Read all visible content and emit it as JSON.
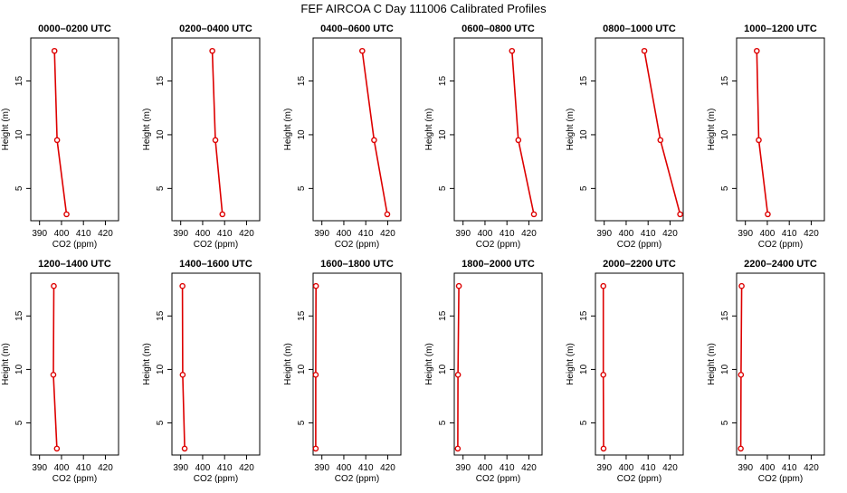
{
  "title": "FEF AIRCOA C  Day 111006  Calibrated Profiles",
  "chart_data": {
    "type": "line",
    "title": "FEF AIRCOA C  Day 111006  Calibrated Profiles",
    "xlabel": "CO2 (ppm)",
    "ylabel": "Height (m)",
    "xlim": [
      386,
      426
    ],
    "ylim": [
      2,
      19
    ],
    "xticks": [
      "390",
      "400",
      "410",
      "420"
    ],
    "yticks": [
      "5",
      "10",
      "15"
    ],
    "line_color": "#dd0000",
    "panels": [
      {
        "title": "0000–0200 UTC",
        "co2": [
          402.3,
          398.0,
          396.8
        ],
        "height": [
          2.6,
          9.5,
          17.8
        ]
      },
      {
        "title": "0200–0400 UTC",
        "co2": [
          409.0,
          405.8,
          404.4
        ],
        "height": [
          2.6,
          9.5,
          17.8
        ]
      },
      {
        "title": "0400–0600 UTC",
        "co2": [
          419.8,
          413.8,
          408.4
        ],
        "height": [
          2.6,
          9.5,
          17.8
        ]
      },
      {
        "title": "0600–0800 UTC",
        "co2": [
          422.3,
          415.2,
          412.3
        ],
        "height": [
          2.6,
          9.5,
          17.8
        ]
      },
      {
        "title": "0800–1000 UTC",
        "co2": [
          424.6,
          415.6,
          408.3
        ],
        "height": [
          2.6,
          9.5,
          17.8
        ]
      },
      {
        "title": "1000–1200 UTC",
        "co2": [
          400.2,
          396.1,
          395.2
        ],
        "height": [
          2.6,
          9.5,
          17.8
        ]
      },
      {
        "title": "1200–1400 UTC",
        "co2": [
          397.9,
          396.3,
          396.5
        ],
        "height": [
          2.6,
          9.5,
          17.8
        ]
      },
      {
        "title": "1400–1600 UTC",
        "co2": [
          391.8,
          390.9,
          390.8
        ],
        "height": [
          2.6,
          9.5,
          17.8
        ]
      },
      {
        "title": "1600–1800 UTC",
        "co2": [
          387.2,
          387.2,
          387.3
        ],
        "height": [
          2.6,
          9.5,
          17.8
        ]
      },
      {
        "title": "1800–2000 UTC",
        "co2": [
          387.6,
          387.7,
          388.1
        ],
        "height": [
          2.6,
          9.5,
          17.8
        ]
      },
      {
        "title": "2000–2200 UTC",
        "co2": [
          389.7,
          389.6,
          389.6
        ],
        "height": [
          2.6,
          9.5,
          17.8
        ]
      },
      {
        "title": "2200–2400 UTC",
        "co2": [
          387.9,
          388.0,
          388.3
        ],
        "height": [
          2.6,
          9.5,
          17.8
        ]
      }
    ]
  }
}
